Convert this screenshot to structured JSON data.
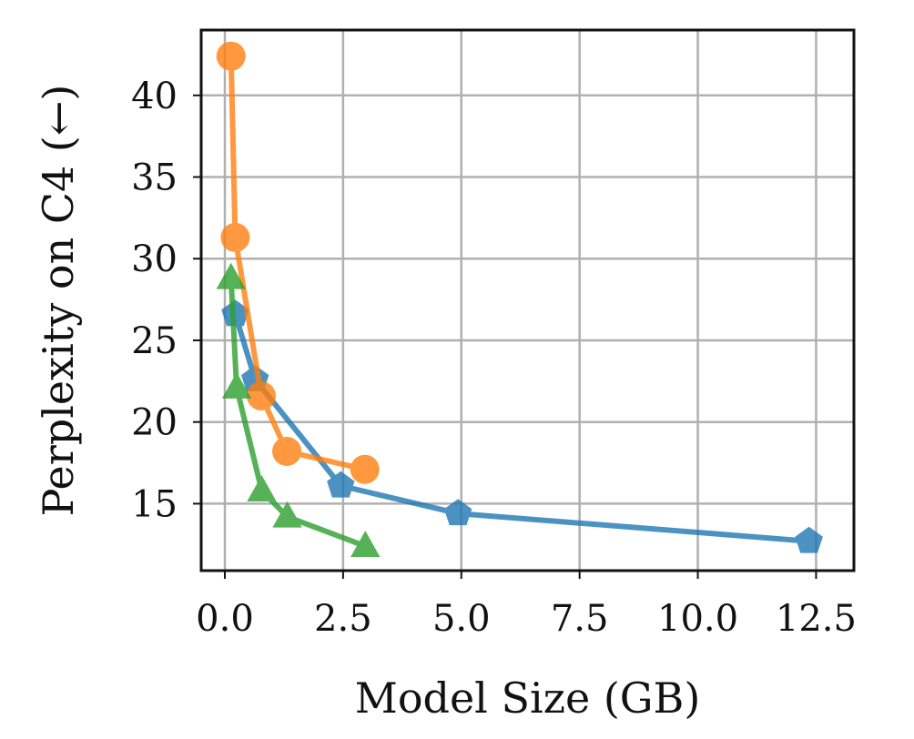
{
  "chart_data": {
    "type": "line",
    "title": "",
    "xlabel": "Model Size (GB)",
    "ylabel": "Perplexity on C4 (←)",
    "xlim": [
      -0.5,
      13.3
    ],
    "ylim": [
      10.9,
      44.0
    ],
    "xticks": [
      0.0,
      2.5,
      5.0,
      7.5,
      10.0,
      12.5
    ],
    "xtick_labels": [
      "0.0",
      "2.5",
      "5.0",
      "7.5",
      "10.0",
      "12.5"
    ],
    "yticks": [
      15,
      20,
      25,
      30,
      35,
      40
    ],
    "ytick_labels": [
      "15",
      "20",
      "25",
      "30",
      "35",
      "40"
    ],
    "grid": true,
    "legend": "none",
    "series": [
      {
        "color": "#1f77b4",
        "marker": "pentagon",
        "x": [
          0.22,
          0.64,
          2.45,
          4.93,
          12.35
        ],
        "y": [
          26.6,
          22.6,
          16.1,
          14.4,
          12.7
        ]
      },
      {
        "color": "#ff7f0e",
        "marker": "circle",
        "x": [
          0.13,
          0.22,
          0.77,
          1.31,
          2.96
        ],
        "y": [
          42.4,
          31.3,
          21.6,
          18.2,
          17.1
        ]
      },
      {
        "color": "#2ca02c",
        "marker": "triangle",
        "x": [
          0.13,
          0.25,
          0.78,
          1.32,
          2.97
        ],
        "y": [
          28.8,
          22.1,
          15.8,
          14.2,
          12.4
        ]
      }
    ]
  }
}
